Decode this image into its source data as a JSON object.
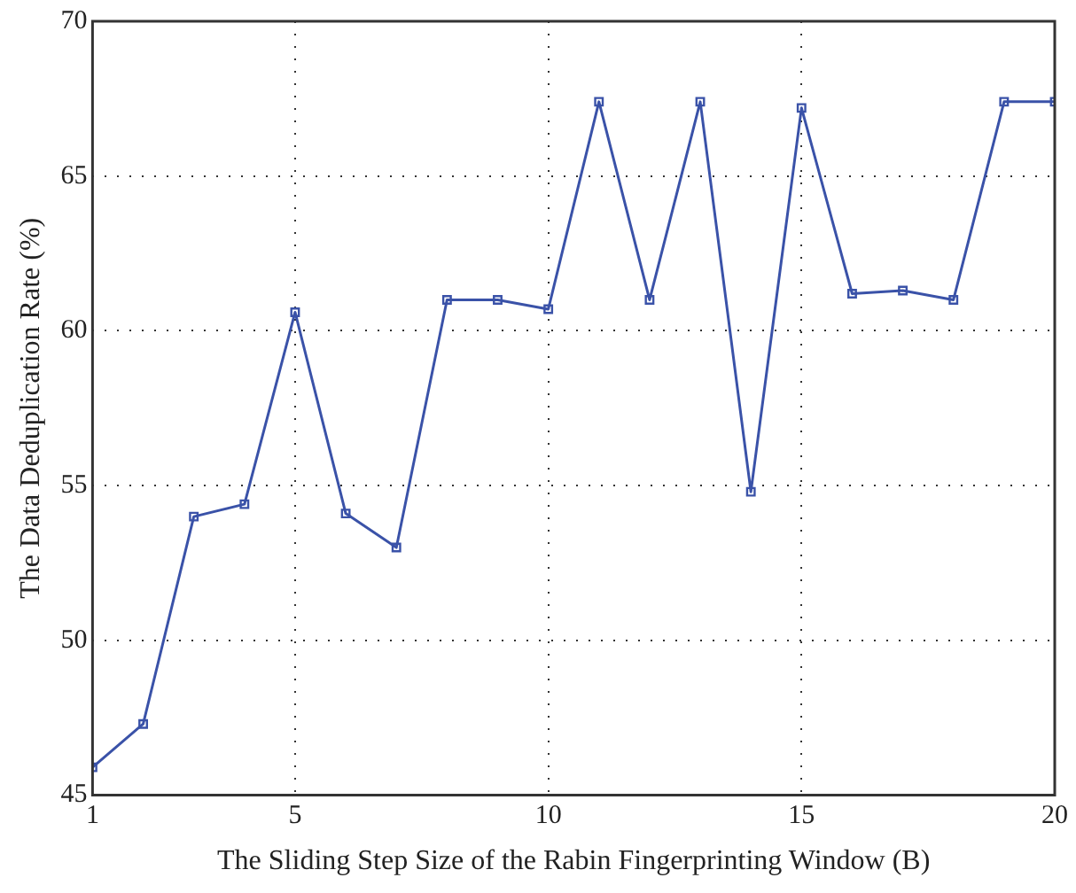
{
  "chart_data": {
    "type": "line",
    "xlabel": "The Sliding Step Size of the Rabin Fingerprinting Window (B)",
    "ylabel": "The Data Deduplication Rate (%)",
    "x": [
      1,
      2,
      3,
      4,
      5,
      6,
      7,
      8,
      9,
      10,
      11,
      12,
      13,
      14,
      15,
      16,
      17,
      18,
      19,
      20
    ],
    "series": [
      {
        "color": "#3a52a8",
        "values": [
          45.9,
          47.3,
          54.0,
          54.4,
          60.6,
          54.1,
          53.0,
          61.0,
          61.0,
          60.7,
          67.4,
          61.0,
          67.4,
          54.8,
          67.2,
          61.2,
          61.3,
          61.0,
          67.4,
          67.4
        ]
      }
    ],
    "xlim": [
      1,
      20
    ],
    "xticks": [
      1,
      5,
      10,
      15,
      20
    ],
    "ylim": [
      45,
      70
    ],
    "yticks": [
      45,
      50,
      55,
      60,
      65,
      70
    ],
    "grid": true,
    "legend": false,
    "marker": "square",
    "line_style": "solid"
  }
}
